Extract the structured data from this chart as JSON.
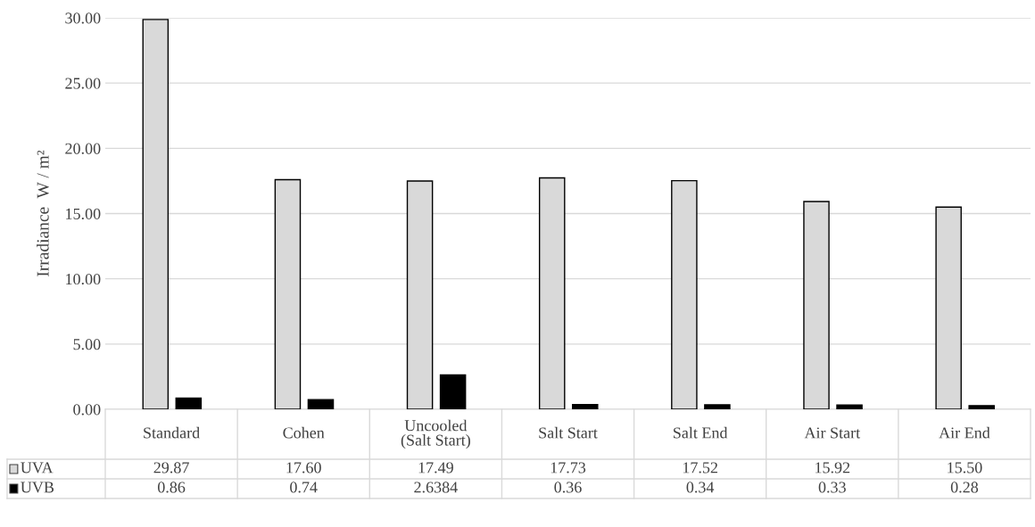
{
  "chart_data": {
    "type": "bar",
    "ylabel": "Irradiance  W / m²",
    "categories": [
      "Standard",
      "Cohen",
      "Uncooled\n(Salt Start)",
      "Salt Start",
      "Salt End",
      "Air Start",
      "Air End"
    ],
    "series": [
      {
        "name": "UVA",
        "color": "#d9d9d9",
        "values": [
          29.87,
          17.6,
          17.49,
          17.73,
          17.52,
          15.92,
          15.5
        ],
        "value_labels": [
          "29.87",
          "17.60",
          "17.49",
          "17.73",
          "17.52",
          "15.92",
          "15.50"
        ]
      },
      {
        "name": "UVB",
        "color": "#000000",
        "values": [
          0.86,
          0.74,
          2.6384,
          0.36,
          0.34,
          0.33,
          0.28
        ],
        "value_labels": [
          "0.86",
          "0.74",
          "2.6384",
          "0.36",
          "0.34",
          "0.33",
          "0.28"
        ]
      }
    ],
    "ylim": [
      0,
      30
    ],
    "yticks": [
      {
        "value": 0,
        "label": "0.00"
      },
      {
        "value": 5,
        "label": "5.00"
      },
      {
        "value": 10,
        "label": "10.00"
      },
      {
        "value": 15,
        "label": "15.00"
      },
      {
        "value": 20,
        "label": "20.00"
      },
      {
        "value": 25,
        "label": "25.00"
      },
      {
        "value": 30,
        "label": "30.00"
      }
    ],
    "grid": "y",
    "legend": "bottom"
  }
}
